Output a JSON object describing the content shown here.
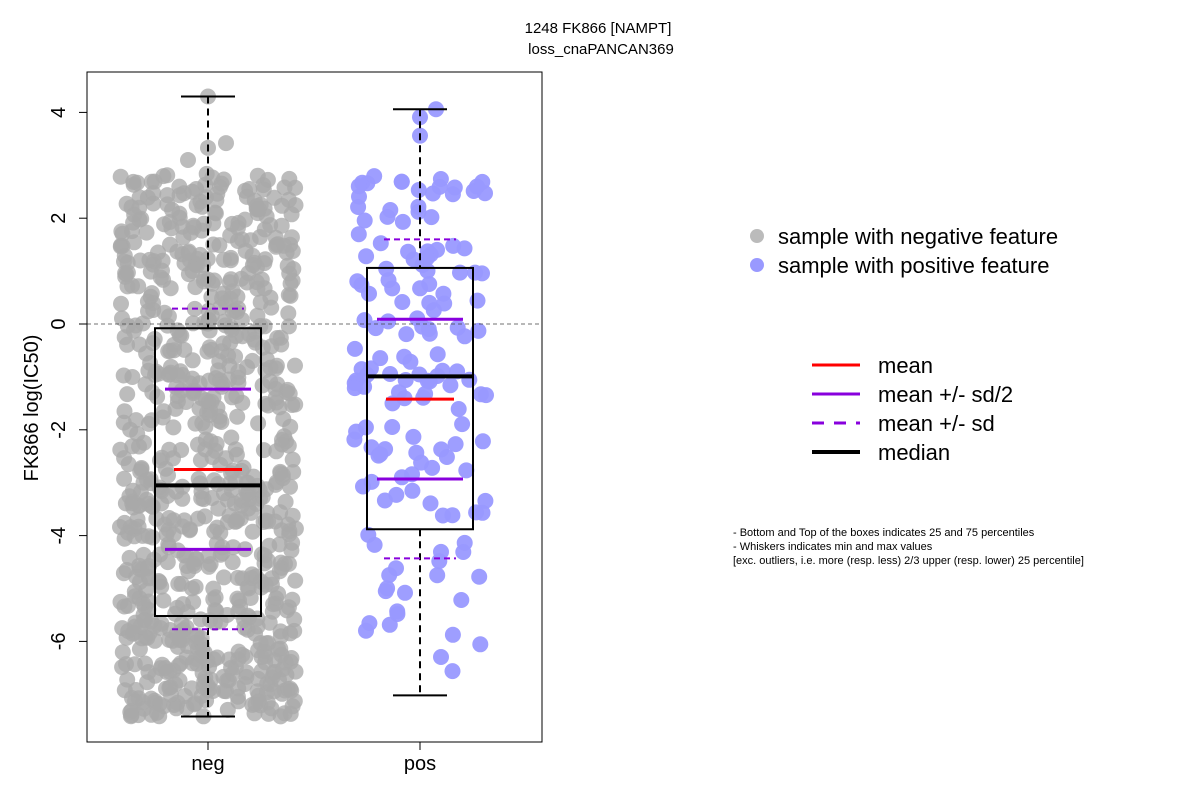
{
  "chart_data": {
    "type": "box-swarm",
    "title_line1": "1248 FK866 [NAMPT]",
    "title_line2": "loss_cnaPANCAN369",
    "ylabel": "FK866 log(IC50)",
    "ylim": [
      -7.9,
      4.8
    ],
    "yticks": [
      -6,
      -4,
      -2,
      0,
      2,
      4
    ],
    "reference_line": 0,
    "categories": [
      "neg",
      "pos"
    ],
    "colors": {
      "neg": "#a9a9a9",
      "pos": "#9999ff",
      "mean": "#ff0000",
      "sd": "#8800dd",
      "median": "#000000"
    },
    "groups": [
      {
        "name": "neg",
        "n_points": 820,
        "q1": -5.52,
        "median": -3.05,
        "q3": -0.08,
        "whisker_low": -7.42,
        "whisker_high": 4.3,
        "mean": -2.75,
        "mean_minus_half_sd": -4.26,
        "mean_plus_half_sd": -1.23,
        "mean_minus_sd": -5.77,
        "mean_plus_sd": 0.29
      },
      {
        "name": "pos",
        "n_points": 150,
        "q1": -3.88,
        "median": -0.99,
        "q3": 1.06,
        "whisker_low": -7.02,
        "whisker_high": 4.06,
        "mean": -1.42,
        "mean_minus_half_sd": -2.93,
        "mean_plus_half_sd": 0.09,
        "mean_minus_sd": -4.43,
        "mean_plus_sd": 1.6
      }
    ]
  },
  "legend_samples": [
    {
      "label": "sample with negative feature",
      "color": "#bbbbbb"
    },
    {
      "label": "sample with positive feature",
      "color": "#9999ff"
    }
  ],
  "legend_lines": [
    {
      "label": "mean",
      "color": "#ff0000",
      "dashed": false
    },
    {
      "label": "mean +/- sd/2",
      "color": "#8800dd",
      "dashed": false
    },
    {
      "label": "mean +/- sd",
      "color": "#8800dd",
      "dashed": true
    },
    {
      "label": "median",
      "color": "#000000",
      "dashed": false
    }
  ],
  "notes": [
    "- Bottom and Top of the boxes indicates 25 and 75 percentiles",
    "- Whiskers indicates min and max values",
    "[exc. outliers, i.e. more (resp. less) 2/3 upper (resp. lower) 25 percentile]"
  ]
}
